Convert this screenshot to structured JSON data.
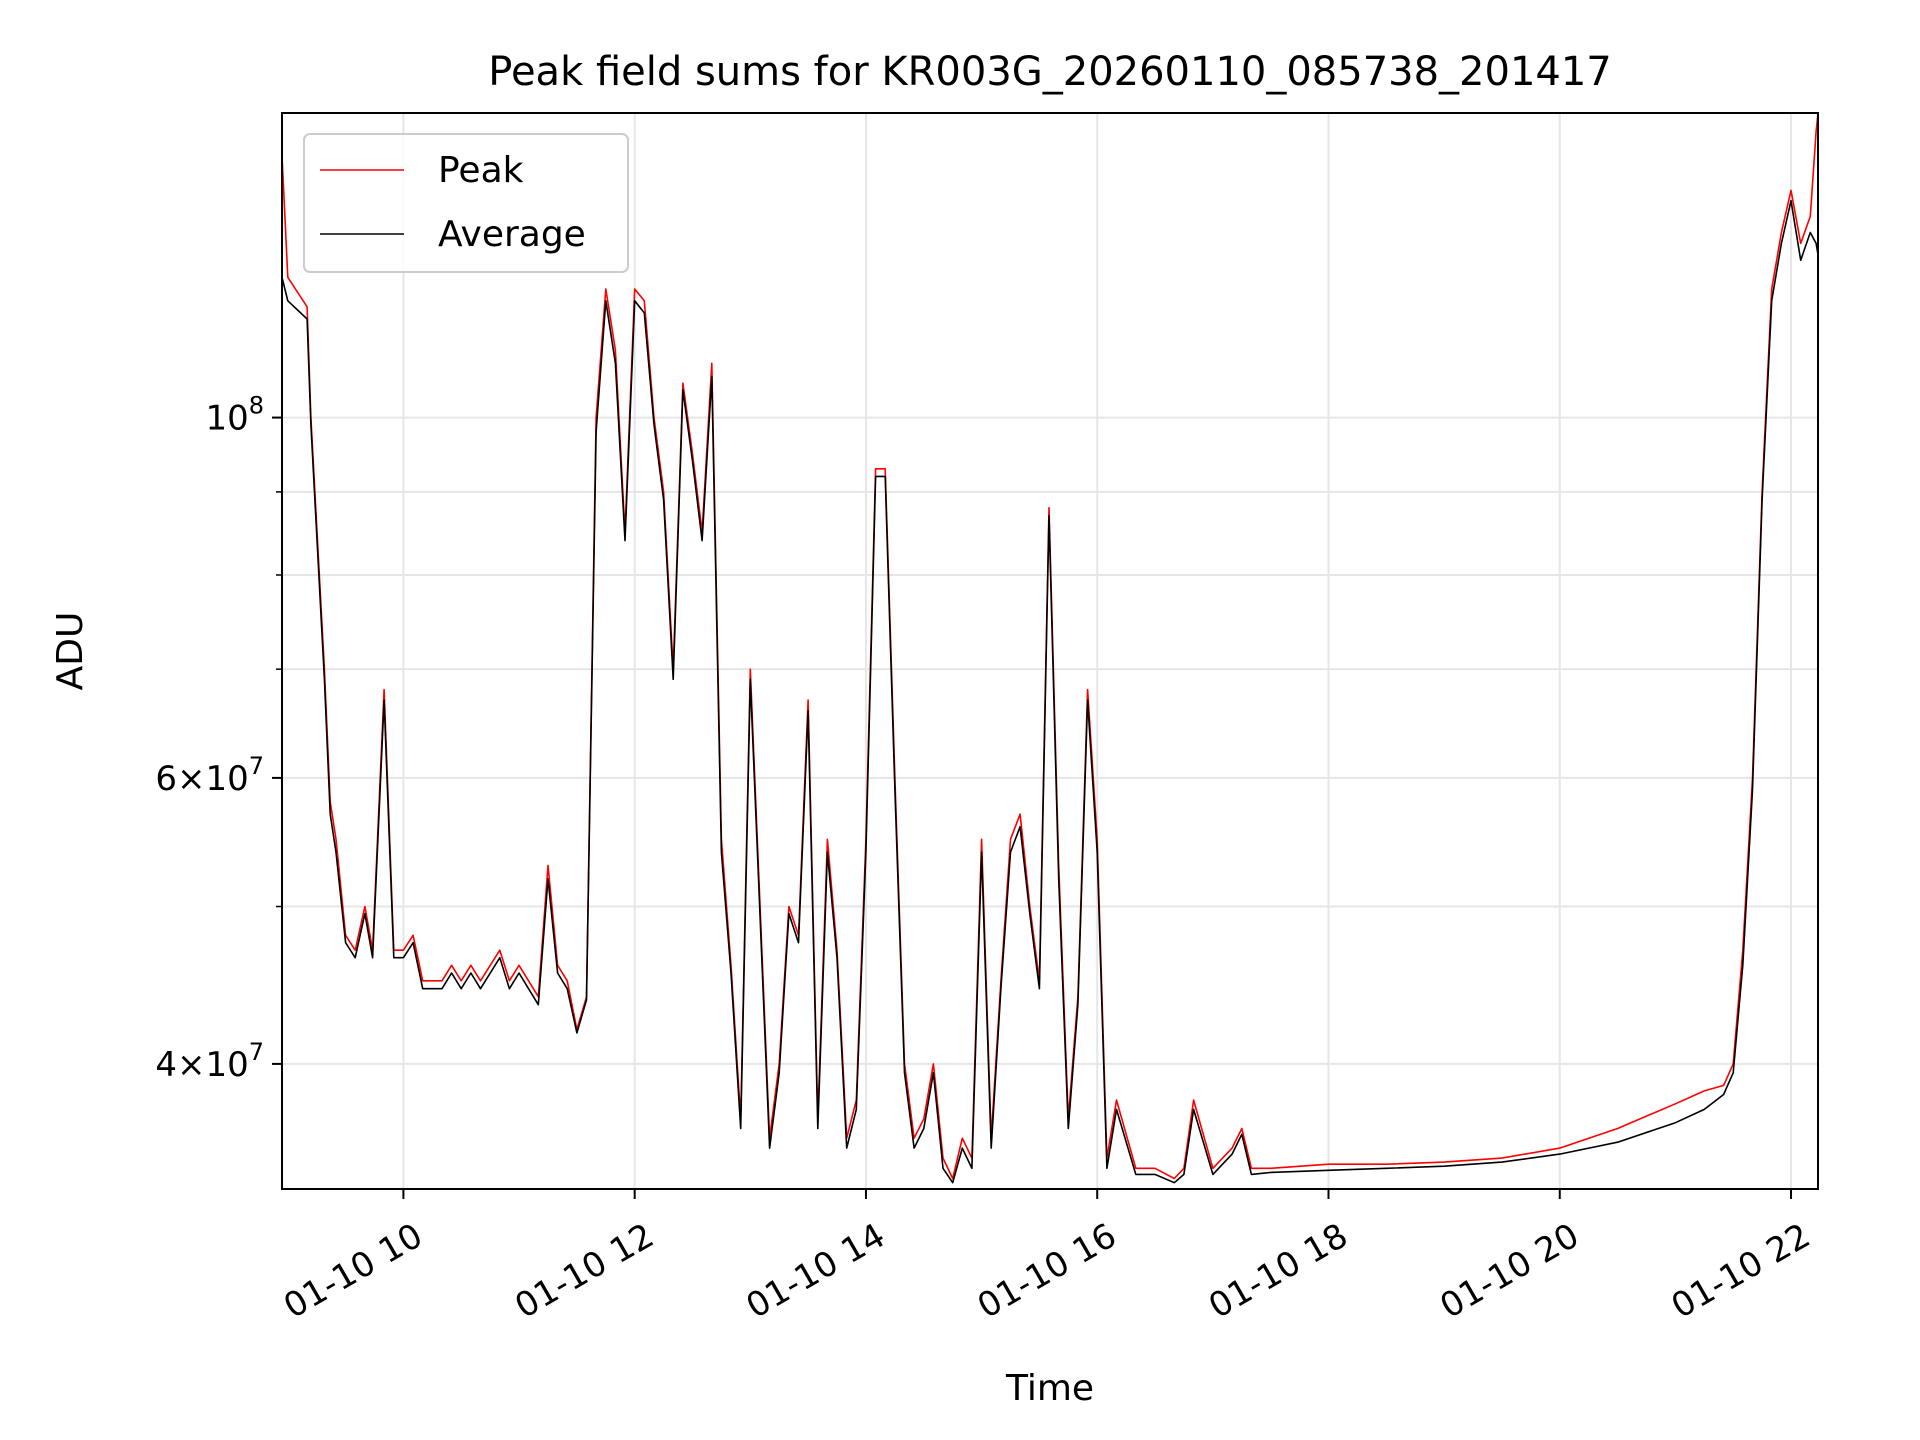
{
  "chart_data": {
    "type": "line",
    "title": "Peak field sums for KR003G_20260110_085738_201417",
    "xlabel": "Time",
    "ylabel": "ADU",
    "yscale": "log",
    "grid": true,
    "legend_position": "upper-left",
    "xlim": [
      "2026-01-10 08:57",
      "2026-01-10 22:14"
    ],
    "ylim": [
      33500000,
      154000000
    ],
    "x_ticks": [
      {
        "value": "2026-01-10 10:00",
        "label": "01-10 10"
      },
      {
        "value": "2026-01-10 12:00",
        "label": "01-10 12"
      },
      {
        "value": "2026-01-10 14:00",
        "label": "01-10 14"
      },
      {
        "value": "2026-01-10 16:00",
        "label": "01-10 16"
      },
      {
        "value": "2026-01-10 18:00",
        "label": "01-10 18"
      },
      {
        "value": "2026-01-10 20:00",
        "label": "01-10 20"
      },
      {
        "value": "2026-01-10 22:00",
        "label": "01-10 22"
      }
    ],
    "y_major_ticks": [
      {
        "value": 40000000,
        "mantissa": "4",
        "exponent": "7"
      },
      {
        "value": 60000000,
        "mantissa": "6",
        "exponent": "7"
      },
      {
        "value": 100000000,
        "mantissa": "",
        "exponent": "8"
      }
    ],
    "y_minor_ticks": [
      50000000,
      70000000,
      80000000,
      90000000
    ],
    "series": [
      {
        "name": "Peak",
        "color": "#ff0000",
        "x": [
          "2026-01-10 08:57",
          "2026-01-10 09:00",
          "2026-01-10 09:10",
          "2026-01-10 09:12",
          "2026-01-10 09:19",
          "2026-01-10 09:22",
          "2026-01-10 09:25",
          "2026-01-10 09:30",
          "2026-01-10 09:35",
          "2026-01-10 09:40",
          "2026-01-10 09:44",
          "2026-01-10 09:50",
          "2026-01-10 09:55",
          "2026-01-10 10:00",
          "2026-01-10 10:05",
          "2026-01-10 10:10",
          "2026-01-10 10:20",
          "2026-01-10 10:25",
          "2026-01-10 10:30",
          "2026-01-10 10:35",
          "2026-01-10 10:40",
          "2026-01-10 10:50",
          "2026-01-10 10:55",
          "2026-01-10 11:00",
          "2026-01-10 11:10",
          "2026-01-10 11:15",
          "2026-01-10 11:20",
          "2026-01-10 11:25",
          "2026-01-10 11:30",
          "2026-01-10 11:35",
          "2026-01-10 11:40",
          "2026-01-10 11:45",
          "2026-01-10 11:50",
          "2026-01-10 11:55",
          "2026-01-10 12:00",
          "2026-01-10 12:05",
          "2026-01-10 12:10",
          "2026-01-10 12:15",
          "2026-01-10 12:20",
          "2026-01-10 12:25",
          "2026-01-10 12:30",
          "2026-01-10 12:35",
          "2026-01-10 12:40",
          "2026-01-10 12:45",
          "2026-01-10 12:50",
          "2026-01-10 12:55",
          "2026-01-10 13:00",
          "2026-01-10 13:10",
          "2026-01-10 13:15",
          "2026-01-10 13:20",
          "2026-01-10 13:25",
          "2026-01-10 13:30",
          "2026-01-10 13:35",
          "2026-01-10 13:40",
          "2026-01-10 13:45",
          "2026-01-10 13:50",
          "2026-01-10 13:55",
          "2026-01-10 14:00",
          "2026-01-10 14:05",
          "2026-01-10 14:10",
          "2026-01-10 14:15",
          "2026-01-10 14:20",
          "2026-01-10 14:25",
          "2026-01-10 14:30",
          "2026-01-10 14:35",
          "2026-01-10 14:40",
          "2026-01-10 14:45",
          "2026-01-10 14:50",
          "2026-01-10 14:55",
          "2026-01-10 15:00",
          "2026-01-10 15:05",
          "2026-01-10 15:10",
          "2026-01-10 15:15",
          "2026-01-10 15:20",
          "2026-01-10 15:25",
          "2026-01-10 15:30",
          "2026-01-10 15:35",
          "2026-01-10 15:40",
          "2026-01-10 15:45",
          "2026-01-10 15:50",
          "2026-01-10 15:55",
          "2026-01-10 16:00",
          "2026-01-10 16:05",
          "2026-01-10 16:10",
          "2026-01-10 16:20",
          "2026-01-10 16:30",
          "2026-01-10 16:40",
          "2026-01-10 16:45",
          "2026-01-10 16:50",
          "2026-01-10 17:00",
          "2026-01-10 17:10",
          "2026-01-10 17:15",
          "2026-01-10 17:20",
          "2026-01-10 17:30",
          "2026-01-10 18:00",
          "2026-01-10 18:30",
          "2026-01-10 19:00",
          "2026-01-10 19:30",
          "2026-01-10 20:00",
          "2026-01-10 20:30",
          "2026-01-10 21:00",
          "2026-01-10 21:15",
          "2026-01-10 21:25",
          "2026-01-10 21:30",
          "2026-01-10 21:35",
          "2026-01-10 21:40",
          "2026-01-10 21:45",
          "2026-01-10 21:50",
          "2026-01-10 21:55",
          "2026-01-10 22:00",
          "2026-01-10 22:05",
          "2026-01-10 22:10",
          "2026-01-10 22:13",
          "2026-01-10 22:14"
        ],
        "values": [
          145000000,
          122000000,
          117000000,
          100000000,
          70000000,
          58000000,
          55000000,
          48000000,
          47000000,
          50000000,
          47000000,
          68000000,
          47000000,
          47000000,
          48000000,
          45000000,
          45000000,
          46000000,
          45000000,
          46000000,
          45000000,
          47000000,
          45000000,
          46000000,
          44000000,
          53000000,
          46000000,
          45000000,
          42000000,
          44000000,
          100000000,
          120000000,
          110000000,
          85000000,
          120000000,
          118000000,
          100000000,
          90000000,
          70000000,
          105000000,
          95000000,
          85000000,
          108000000,
          55000000,
          46000000,
          37000000,
          70000000,
          36000000,
          40000000,
          50000000,
          48000000,
          67000000,
          37000000,
          55000000,
          47000000,
          36000000,
          38000000,
          55000000,
          93000000,
          93000000,
          60000000,
          40000000,
          36000000,
          37000000,
          40000000,
          35000000,
          34000000,
          36000000,
          35000000,
          55000000,
          36000000,
          45000000,
          55000000,
          57000000,
          50000000,
          45000000,
          88000000,
          53000000,
          37000000,
          44000000,
          68000000,
          55000000,
          35000000,
          38000000,
          34500000,
          34500000,
          34000000,
          34500000,
          38000000,
          34500000,
          35500000,
          36500000,
          34500000,
          34500000,
          34700000,
          34700000,
          34800000,
          35000000,
          35500000,
          36500000,
          37800000,
          38500000,
          38800000,
          40000000,
          47000000,
          60000000,
          90000000,
          120000000,
          130000000,
          138000000,
          128000000,
          133000000,
          150000000,
          154000000
        ]
      },
      {
        "name": "Average",
        "color": "#000000",
        "x": [
          "2026-01-10 08:57",
          "2026-01-10 09:00",
          "2026-01-10 09:10",
          "2026-01-10 09:12",
          "2026-01-10 09:19",
          "2026-01-10 09:22",
          "2026-01-10 09:25",
          "2026-01-10 09:30",
          "2026-01-10 09:35",
          "2026-01-10 09:40",
          "2026-01-10 09:44",
          "2026-01-10 09:50",
          "2026-01-10 09:55",
          "2026-01-10 10:00",
          "2026-01-10 10:05",
          "2026-01-10 10:10",
          "2026-01-10 10:20",
          "2026-01-10 10:25",
          "2026-01-10 10:30",
          "2026-01-10 10:35",
          "2026-01-10 10:40",
          "2026-01-10 10:50",
          "2026-01-10 10:55",
          "2026-01-10 11:00",
          "2026-01-10 11:10",
          "2026-01-10 11:15",
          "2026-01-10 11:20",
          "2026-01-10 11:25",
          "2026-01-10 11:30",
          "2026-01-10 11:35",
          "2026-01-10 11:40",
          "2026-01-10 11:45",
          "2026-01-10 11:50",
          "2026-01-10 11:55",
          "2026-01-10 12:00",
          "2026-01-10 12:05",
          "2026-01-10 12:10",
          "2026-01-10 12:15",
          "2026-01-10 12:20",
          "2026-01-10 12:25",
          "2026-01-10 12:30",
          "2026-01-10 12:35",
          "2026-01-10 12:40",
          "2026-01-10 12:45",
          "2026-01-10 12:50",
          "2026-01-10 12:55",
          "2026-01-10 13:00",
          "2026-01-10 13:10",
          "2026-01-10 13:15",
          "2026-01-10 13:20",
          "2026-01-10 13:25",
          "2026-01-10 13:30",
          "2026-01-10 13:35",
          "2026-01-10 13:40",
          "2026-01-10 13:45",
          "2026-01-10 13:50",
          "2026-01-10 13:55",
          "2026-01-10 14:00",
          "2026-01-10 14:05",
          "2026-01-10 14:10",
          "2026-01-10 14:15",
          "2026-01-10 14:20",
          "2026-01-10 14:25",
          "2026-01-10 14:30",
          "2026-01-10 14:35",
          "2026-01-10 14:40",
          "2026-01-10 14:45",
          "2026-01-10 14:50",
          "2026-01-10 14:55",
          "2026-01-10 15:00",
          "2026-01-10 15:05",
          "2026-01-10 15:10",
          "2026-01-10 15:15",
          "2026-01-10 15:20",
          "2026-01-10 15:25",
          "2026-01-10 15:30",
          "2026-01-10 15:35",
          "2026-01-10 15:40",
          "2026-01-10 15:45",
          "2026-01-10 15:50",
          "2026-01-10 15:55",
          "2026-01-10 16:00",
          "2026-01-10 16:05",
          "2026-01-10 16:10",
          "2026-01-10 16:20",
          "2026-01-10 16:30",
          "2026-01-10 16:40",
          "2026-01-10 16:45",
          "2026-01-10 16:50",
          "2026-01-10 17:00",
          "2026-01-10 17:10",
          "2026-01-10 17:15",
          "2026-01-10 17:20",
          "2026-01-10 17:30",
          "2026-01-10 18:00",
          "2026-01-10 18:30",
          "2026-01-10 19:00",
          "2026-01-10 19:30",
          "2026-01-10 20:00",
          "2026-01-10 20:30",
          "2026-01-10 21:00",
          "2026-01-10 21:15",
          "2026-01-10 21:25",
          "2026-01-10 21:30",
          "2026-01-10 21:35",
          "2026-01-10 21:40",
          "2026-01-10 21:45",
          "2026-01-10 21:50",
          "2026-01-10 21:55",
          "2026-01-10 22:00",
          "2026-01-10 22:05",
          "2026-01-10 22:10",
          "2026-01-10 22:13",
          "2026-01-10 22:14"
        ],
        "values": [
          122000000,
          118000000,
          115000000,
          99000000,
          69000000,
          57000000,
          54000000,
          47500000,
          46500000,
          49500000,
          46500000,
          67000000,
          46500000,
          46500000,
          47500000,
          44500000,
          44500000,
          45500000,
          44500000,
          45500000,
          44500000,
          46500000,
          44500000,
          45500000,
          43500000,
          52000000,
          45500000,
          44500000,
          41800000,
          43800000,
          98000000,
          118000000,
          108000000,
          84000000,
          118000000,
          116000000,
          99000000,
          89000000,
          69000000,
          104000000,
          94000000,
          84000000,
          106000000,
          54000000,
          45500000,
          36500000,
          69000000,
          35500000,
          39500000,
          49500000,
          47500000,
          66000000,
          36500000,
          54000000,
          46500000,
          35500000,
          37500000,
          54000000,
          92000000,
          92000000,
          59000000,
          39500000,
          35500000,
          36500000,
          39500000,
          34500000,
          33800000,
          35500000,
          34500000,
          54000000,
          35500000,
          44500000,
          54000000,
          56000000,
          49500000,
          44500000,
          87000000,
          52000000,
          36500000,
          43500000,
          67000000,
          54000000,
          34500000,
          37500000,
          34200000,
          34200000,
          33800000,
          34200000,
          37500000,
          34200000,
          35200000,
          36200000,
          34200000,
          34300000,
          34400000,
          34500000,
          34600000,
          34800000,
          35200000,
          35800000,
          36800000,
          37500000,
          38300000,
          39500000,
          46000000,
          59000000,
          89000000,
          118000000,
          128000000,
          136000000,
          125000000,
          130000000,
          128000000,
          126000000
        ]
      }
    ]
  }
}
